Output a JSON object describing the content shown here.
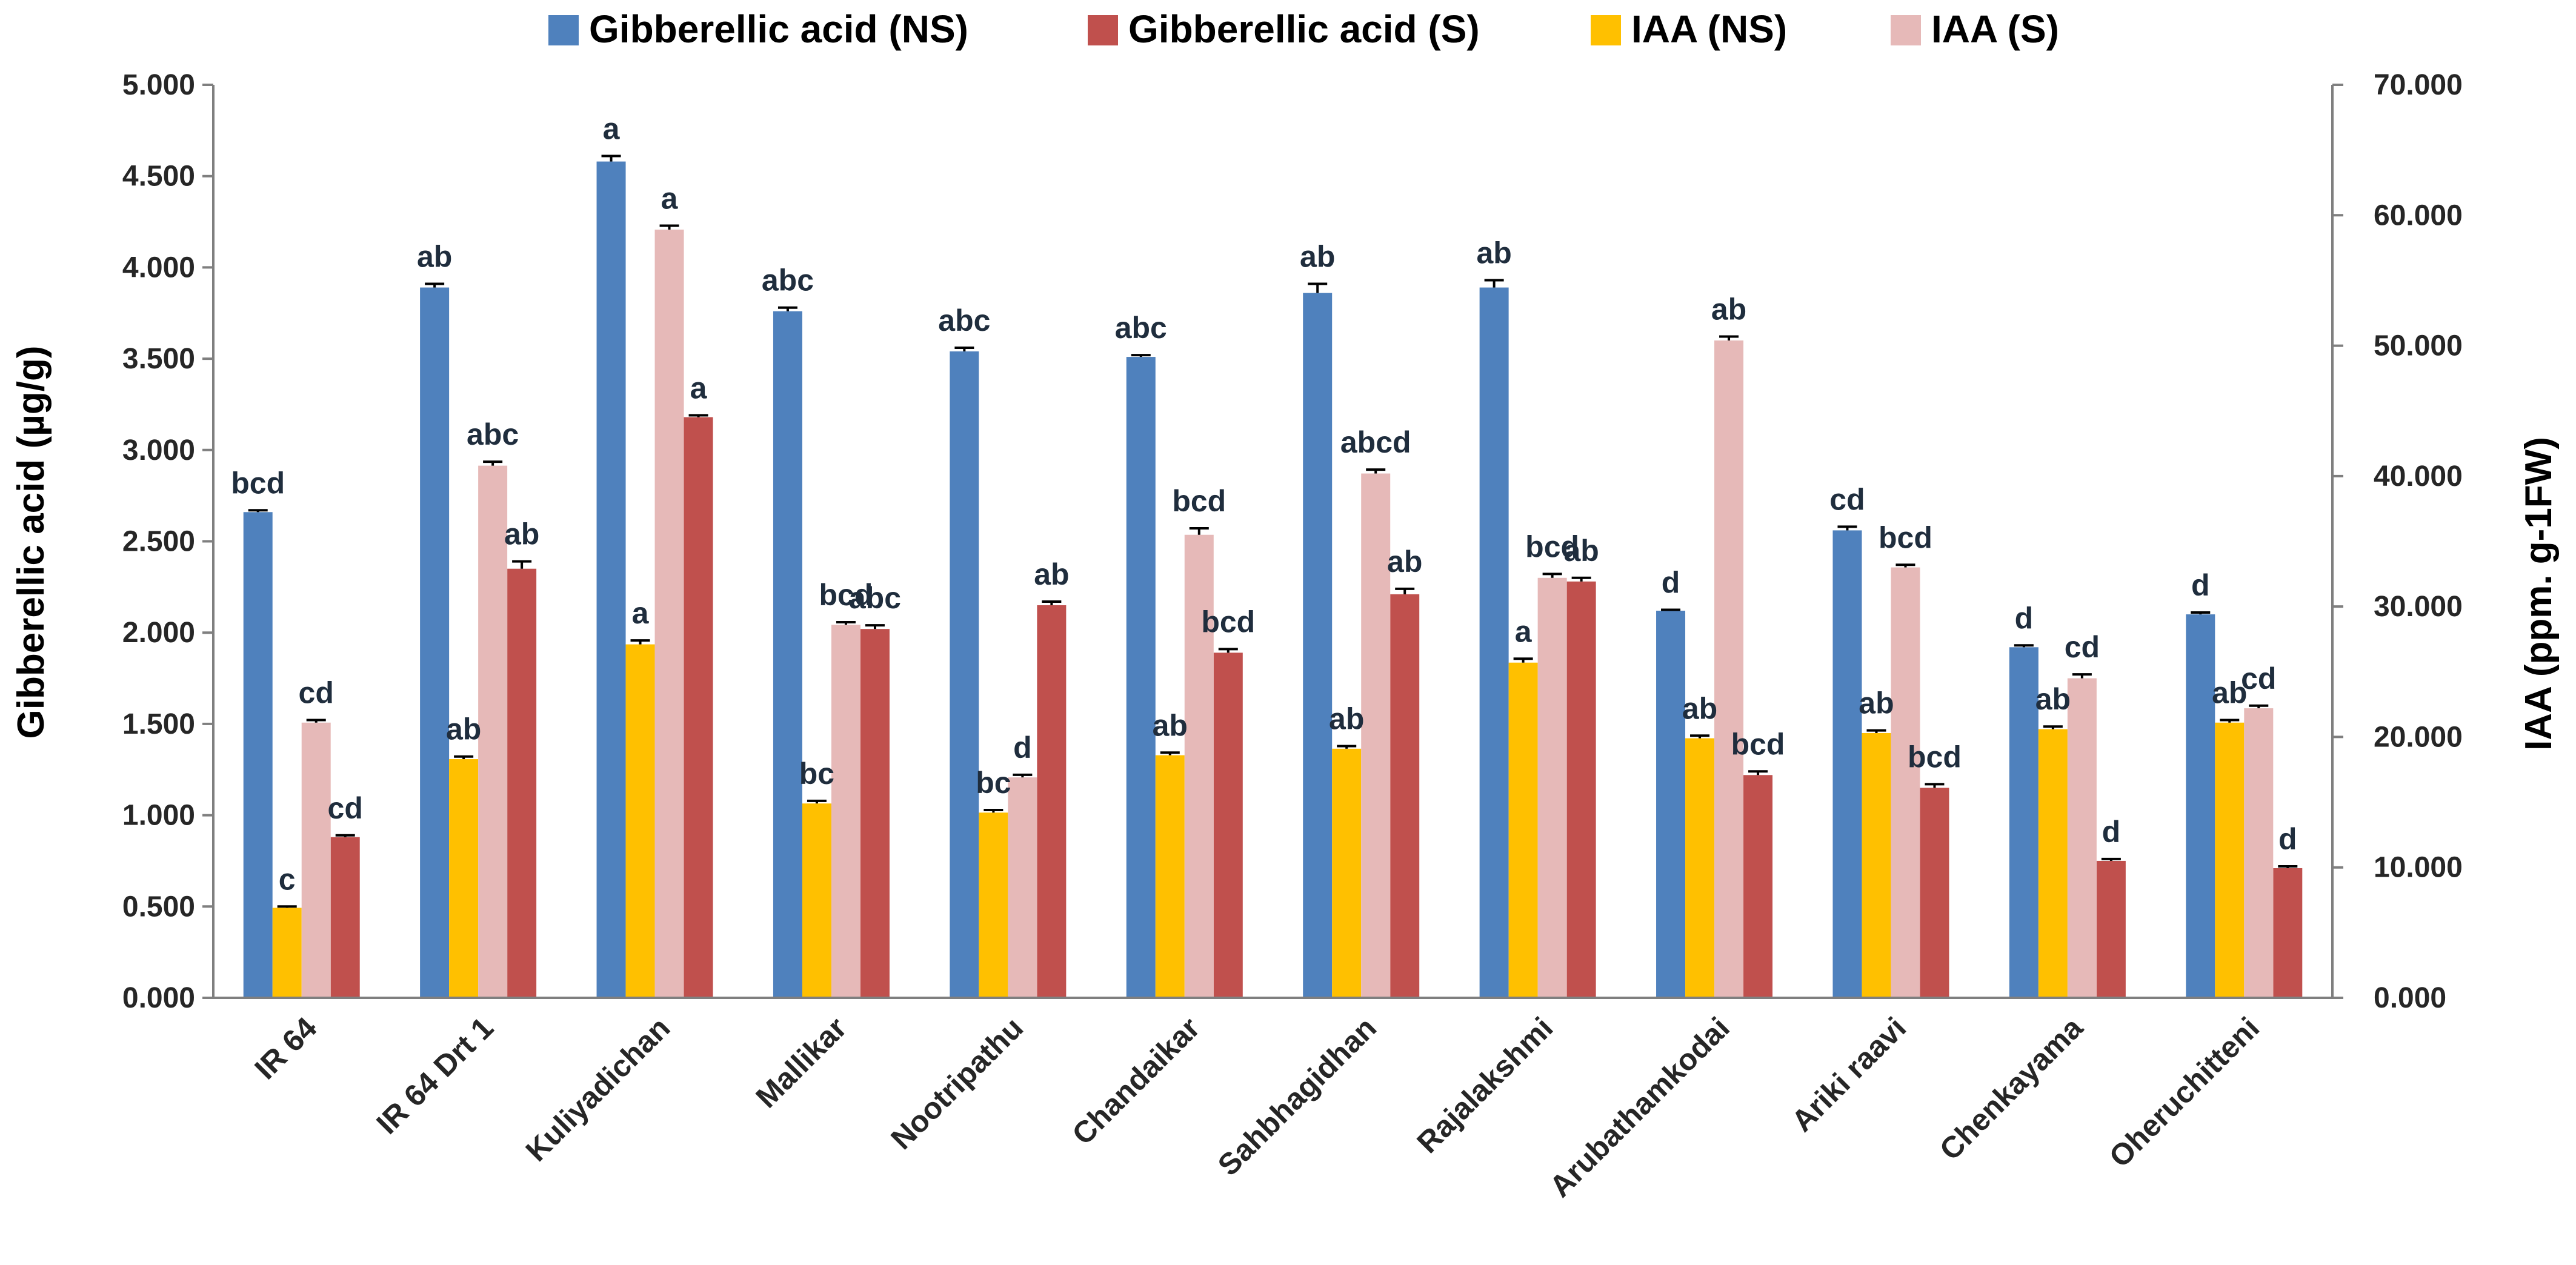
{
  "chart_data": {
    "type": "bar",
    "categories": [
      "IR 64",
      "IR 64 Drt 1",
      "Kuliyadichan",
      "Mallikar",
      "Nootripathu",
      "Chandaikar",
      "Sahbhagidhan",
      "Rajalakshmi",
      "Arubathamkodai",
      "Ariki raavi",
      "Chenkayama",
      "Oheruchitteni"
    ],
    "ylabel": "Gibberellic acid  (µg/g)",
    "y2label": "IAA  (ppm. g-1FW)",
    "ylim": [
      0,
      5
    ],
    "y2lim": [
      0,
      70
    ],
    "yticks": [
      "0.000",
      "0.500",
      "1.000",
      "1.500",
      "2.000",
      "2.500",
      "3.000",
      "3.500",
      "4.000",
      "4.500",
      "5.000"
    ],
    "y2ticks": [
      "0.000",
      "10.000",
      "20.000",
      "30.000",
      "40.000",
      "50.000",
      "60.000",
      "70.000"
    ],
    "legend_position": "top",
    "series": [
      {
        "name": "Gibberellic acid (NS)",
        "axis": "left",
        "color": "#4f81bd",
        "values": [
          2.66,
          3.89,
          4.58,
          3.76,
          3.54,
          3.51,
          3.86,
          3.89,
          2.12,
          2.56,
          1.92,
          2.1
        ],
        "errors": [
          0.01,
          0.02,
          0.03,
          0.02,
          0.02,
          0.01,
          0.05,
          0.04,
          0.005,
          0.02,
          0.01,
          0.01
        ],
        "labels": [
          "bcd",
          "ab",
          "a",
          "abc",
          "abc",
          "abc",
          "ab",
          "ab",
          "d",
          "cd",
          "d",
          "d"
        ]
      },
      {
        "name": "Gibberellic acid (S)",
        "axis": "left",
        "color": "#c0504d",
        "values": [
          0.88,
          2.35,
          3.18,
          2.02,
          2.15,
          1.89,
          2.21,
          2.28,
          1.22,
          1.15,
          0.75,
          0.71
        ],
        "errors": [
          0.01,
          0.04,
          0.01,
          0.02,
          0.02,
          0.02,
          0.03,
          0.02,
          0.02,
          0.02,
          0.01,
          0.01
        ],
        "labels": [
          "cd",
          "ab",
          "a",
          "abc",
          "ab",
          "bcd",
          "ab",
          "ab",
          "bcd",
          "bcd",
          "d",
          "d"
        ]
      },
      {
        "name": "IAA (NS)",
        "axis": "right",
        "color": "#ffc000",
        "values": [
          6.9,
          18.3,
          27.1,
          14.9,
          14.2,
          18.6,
          19.1,
          25.7,
          19.9,
          20.3,
          20.6,
          21.1
        ],
        "errors": [
          0.1,
          0.2,
          0.3,
          0.2,
          0.2,
          0.2,
          0.2,
          0.3,
          0.2,
          0.2,
          0.2,
          0.2
        ],
        "labels": [
          "c",
          "ab",
          "a",
          "bc",
          "bc",
          "ab",
          "ab",
          "a",
          "ab",
          "ab",
          "ab",
          "ab"
        ]
      },
      {
        "name": "IAA (S)",
        "axis": "right",
        "color": "#e6b9b8",
        "values": [
          21.1,
          40.8,
          58.9,
          28.6,
          16.9,
          35.5,
          40.2,
          32.2,
          50.4,
          33.0,
          24.5,
          22.2
        ],
        "errors": [
          0.2,
          0.3,
          0.3,
          0.2,
          0.2,
          0.5,
          0.3,
          0.3,
          0.3,
          0.2,
          0.3,
          0.2
        ],
        "labels": [
          "cd",
          "abc",
          "a",
          "bcd",
          "d",
          "bcd",
          "abcd",
          "bcd",
          "ab",
          "bcd",
          "cd",
          "cd"
        ]
      }
    ]
  }
}
